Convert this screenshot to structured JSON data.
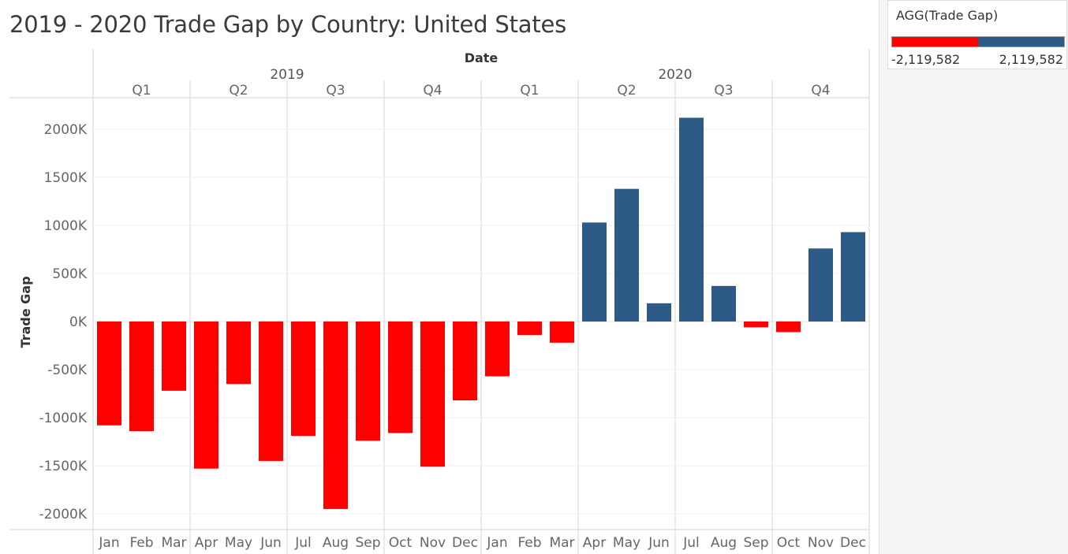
{
  "title": "2019 - 2020 Trade Gap by Country: United States",
  "legend": {
    "title": "AGG(Trade Gap)",
    "min_label": "-2,119,582",
    "max_label": "2,119,582",
    "neg_color": "#ff0000",
    "pos_color": "#2e5a87"
  },
  "chart_data": {
    "type": "bar",
    "title": "2019 - 2020 Trade Gap by Country: United States",
    "column_header": "Date",
    "ylabel": "Trade Gap",
    "ylim": [
      -2100000,
      2200000
    ],
    "yticks": [
      2000000,
      1500000,
      1000000,
      500000,
      0,
      -500000,
      -1000000,
      -1500000,
      -2000000
    ],
    "ytick_labels": [
      "2000K",
      "1500K",
      "1000K",
      "500K",
      "0K",
      "-500K",
      "-1000K",
      "-1500K",
      "-2000K"
    ],
    "years": [
      "2019",
      "2020"
    ],
    "quarters": [
      "Q1",
      "Q2",
      "Q3",
      "Q4",
      "Q1",
      "Q2",
      "Q3",
      "Q4"
    ],
    "categories": [
      "Jan",
      "Feb",
      "Mar",
      "Apr",
      "May",
      "Jun",
      "Jul",
      "Aug",
      "Sep",
      "Oct",
      "Nov",
      "Dec",
      "Jan",
      "Feb",
      "Mar",
      "Apr",
      "May",
      "Jun",
      "Jul",
      "Aug",
      "Sep",
      "Oct",
      "Nov",
      "Dec"
    ],
    "values": [
      -1080000,
      -1140000,
      -720000,
      -1530000,
      -650000,
      -1450000,
      -1190000,
      -1950000,
      -1240000,
      -1160000,
      -1510000,
      -820000,
      -570000,
      -140000,
      -220000,
      1030000,
      1380000,
      190000,
      2119582,
      370000,
      -60000,
      -110000,
      760000,
      930000
    ],
    "neg_color": "#ff0000",
    "pos_color": "#2e5a87"
  }
}
